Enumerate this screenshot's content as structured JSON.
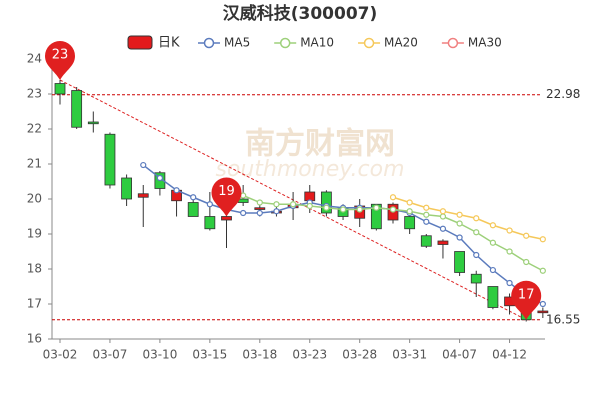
{
  "chart_data": {
    "type": "candlestick",
    "title": "汉威科技(300007)",
    "watermark": "南方财富网",
    "watermark_sub": "southmoney.com",
    "categories": [
      "03-02",
      null,
      null,
      "03-07",
      null,
      null,
      "03-10",
      null,
      null,
      "03-15",
      null,
      null,
      "03-18",
      null,
      null,
      "03-23",
      null,
      null,
      "03-28",
      null,
      null,
      "03-31",
      null,
      null,
      "04-07",
      null,
      null,
      "04-12",
      null,
      null
    ],
    "candles": {
      "name": "日K",
      "up_color": "#e31a1c",
      "down_color": "#2ecc40",
      "open": [
        23.3,
        23.1,
        22.2,
        21.85,
        20.6,
        20.05,
        20.75,
        19.95,
        19.9,
        19.5,
        19.4,
        20.0,
        19.7,
        19.6,
        19.75,
        19.95,
        20.2,
        19.75,
        19.45,
        19.85,
        19.4,
        19.5,
        18.95,
        18.7,
        18.5,
        17.85,
        17.5,
        16.95,
        16.85,
        16.75
      ],
      "close": [
        23.0,
        22.05,
        22.15,
        20.4,
        20.0,
        20.15,
        20.3,
        20.25,
        19.5,
        19.15,
        19.5,
        19.9,
        19.75,
        19.65,
        19.85,
        20.2,
        19.6,
        19.5,
        19.8,
        19.15,
        19.85,
        19.15,
        18.65,
        18.8,
        17.9,
        17.6,
        16.9,
        17.2,
        16.55,
        16.8
      ],
      "high": [
        23.4,
        23.2,
        22.5,
        21.9,
        20.7,
        20.4,
        20.8,
        20.3,
        20.0,
        20.2,
        19.8,
        20.4,
        19.9,
        19.8,
        20.2,
        20.4,
        20.25,
        19.85,
        20.0,
        19.85,
        19.9,
        19.65,
        19.0,
        18.85,
        18.5,
        17.95,
        17.5,
        17.3,
        16.95,
        16.9
      ],
      "low": [
        22.7,
        22.0,
        21.9,
        20.3,
        19.8,
        19.2,
        20.1,
        19.5,
        19.5,
        19.1,
        18.6,
        19.8,
        19.5,
        19.5,
        19.4,
        19.6,
        19.5,
        19.4,
        19.2,
        19.1,
        19.3,
        19.0,
        18.6,
        18.3,
        17.8,
        17.2,
        16.85,
        16.7,
        16.5,
        16.6
      ]
    },
    "series": [
      {
        "name": "MA5",
        "color": "#5b7bbd",
        "values": [
          null,
          null,
          null,
          null,
          null,
          20.97,
          20.6,
          20.25,
          20.05,
          19.85,
          19.7,
          19.6,
          19.6,
          19.65,
          19.8,
          19.9,
          19.8,
          19.75,
          19.75,
          19.75,
          19.7,
          19.6,
          19.35,
          19.15,
          18.9,
          18.4,
          17.97,
          17.6,
          17.25,
          17.0
        ]
      },
      {
        "name": "MA10",
        "color": "#9dd07a",
        "values": [
          null,
          null,
          null,
          null,
          null,
          null,
          null,
          null,
          null,
          null,
          null,
          20.1,
          19.9,
          19.85,
          19.85,
          19.8,
          19.75,
          19.7,
          19.7,
          19.75,
          19.7,
          19.65,
          19.55,
          19.5,
          19.3,
          19.05,
          18.75,
          18.5,
          18.2,
          17.95
        ]
      },
      {
        "name": "MA20",
        "color": "#f5c85a",
        "values": [
          null,
          null,
          null,
          null,
          null,
          null,
          null,
          null,
          null,
          null,
          null,
          null,
          null,
          null,
          null,
          null,
          null,
          null,
          null,
          null,
          20.05,
          19.9,
          19.75,
          19.65,
          19.55,
          19.45,
          19.25,
          19.1,
          18.95,
          18.85
        ]
      },
      {
        "name": "MA30",
        "color": "#f08080",
        "values": [
          null,
          null,
          null,
          null,
          null,
          null,
          null,
          null,
          null,
          null,
          null,
          null,
          null,
          null,
          null,
          null,
          null,
          null,
          null,
          null,
          null,
          null,
          null,
          null,
          null,
          null,
          null,
          null,
          null,
          null
        ]
      }
    ],
    "markers": [
      {
        "label": "23",
        "value": 23.4,
        "category_index": 0
      },
      {
        "label": "19",
        "value": 19.5,
        "category_index": 10
      },
      {
        "label": "17",
        "value": 16.55,
        "category_index": 28
      }
    ],
    "hlines": [
      22.98,
      16.55
    ],
    "ylim": [
      16,
      24
    ],
    "yticks": [
      16,
      17,
      18,
      19,
      20,
      21,
      22,
      23,
      24
    ]
  }
}
